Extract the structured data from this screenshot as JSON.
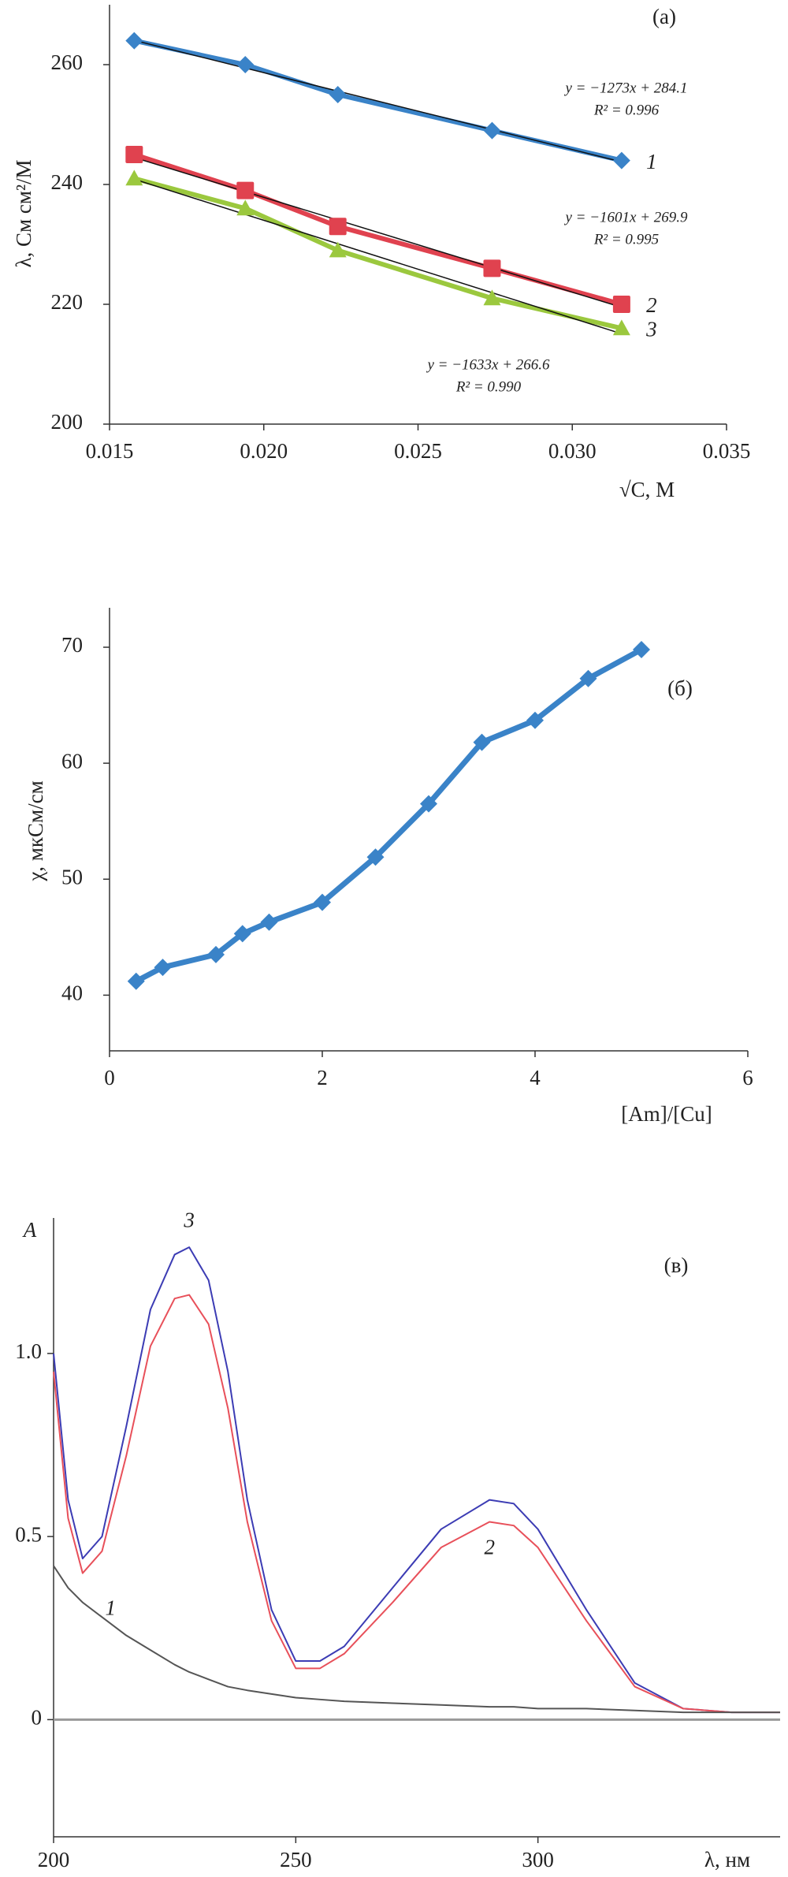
{
  "chart_data": [
    {
      "type": "line",
      "title": "(а)",
      "y_label": "λ, См см²/М",
      "x_label": "√C, М",
      "x": [
        0.0158,
        0.0194,
        0.0224,
        0.0274,
        0.0316
      ],
      "series": [
        {
          "name": "1",
          "color": "#3a83c8",
          "marker": "diamond",
          "values": [
            264,
            260,
            255,
            249,
            244
          ]
        },
        {
          "name": "2",
          "color": "#e0424f",
          "marker": "square",
          "values": [
            245,
            239,
            233,
            226,
            220
          ]
        },
        {
          "name": "3",
          "color": "#9bc83e",
          "marker": "triangle",
          "values": [
            241,
            236,
            229,
            221,
            216
          ]
        }
      ],
      "trendline": true,
      "annotations": [
        "y = −1273x + 284.1",
        "R² = 0.996",
        "y = −1601x + 269.9",
        "R² = 0.995",
        "y = −1633x + 266.6",
        "R² = 0.990"
      ],
      "xlim": [
        0.015,
        0.035
      ],
      "xticks": [
        0.015,
        {
          "value": 0.02,
          "label": "0.020"
        },
        0.025,
        {
          "value": 0.03,
          "label": "0.030"
        },
        0.035
      ],
      "ylim": [
        200,
        270
      ],
      "yticks": [
        200,
        220,
        240,
        260
      ]
    },
    {
      "type": "line",
      "title": "(б)",
      "y_label": "χ, мкСм/см",
      "x_label": "[Am]/[Cu]",
      "x": [
        0.25,
        0.5,
        1,
        1.25,
        1.5,
        2,
        2.5,
        3,
        3.5,
        4,
        4.5,
        5
      ],
      "series": [
        {
          "name": null,
          "color": "#3a83c8",
          "marker": "diamond",
          "values": [
            41.2,
            42.4,
            43.5,
            45.3,
            46.3,
            48,
            51.9,
            56.5,
            61.8,
            63.7,
            67.3,
            69.8
          ]
        }
      ],
      "xlim": [
        0,
        6
      ],
      "xticks": [
        0,
        2,
        4,
        6
      ],
      "ylim": [
        35.2,
        73.4
      ],
      "yticks": [
        40,
        50,
        60,
        70
      ]
    },
    {
      "type": "line",
      "title": "(в)",
      "y_label": "A",
      "x_label": "λ, нм",
      "x": [
        200,
        203,
        206,
        210,
        215,
        220,
        225,
        228,
        232,
        236,
        240,
        245,
        250,
        255,
        260,
        270,
        280,
        290,
        295,
        300,
        310,
        320,
        330,
        340,
        350
      ],
      "series": [
        {
          "name": "3",
          "color": "#3c3cb4",
          "values": [
            1.0,
            0.6,
            0.44,
            0.5,
            0.8,
            1.12,
            1.27,
            1.29,
            1.2,
            0.95,
            0.6,
            0.3,
            0.16,
            0.16,
            0.2,
            0.36,
            0.52,
            0.6,
            0.59,
            0.52,
            0.3,
            0.1,
            0.03,
            0.02,
            0.02
          ]
        },
        {
          "name": "2",
          "color": "#e8505a",
          "values": [
            0.95,
            0.55,
            0.4,
            0.46,
            0.72,
            1.02,
            1.15,
            1.16,
            1.08,
            0.85,
            0.54,
            0.27,
            0.14,
            0.14,
            0.18,
            0.32,
            0.47,
            0.54,
            0.53,
            0.47,
            0.27,
            0.09,
            0.03,
            0.02,
            0.02
          ]
        },
        {
          "name": "1",
          "color": "#555555",
          "values": [
            0.42,
            0.36,
            0.32,
            0.28,
            0.23,
            0.19,
            0.15,
            0.13,
            0.11,
            0.09,
            0.08,
            0.07,
            0.06,
            0.055,
            0.05,
            0.045,
            0.04,
            0.035,
            0.035,
            0.03,
            0.03,
            0.025,
            0.02,
            0.02,
            0.02
          ]
        }
      ],
      "zero_line": true,
      "xlim": [
        200,
        350
      ],
      "xticks": [
        200,
        250,
        300
      ],
      "ylim": [
        -0.32,
        1.37
      ],
      "yticks": [
        0,
        0.5,
        {
          "value": 1,
          "label": "1.0"
        }
      ]
    }
  ]
}
